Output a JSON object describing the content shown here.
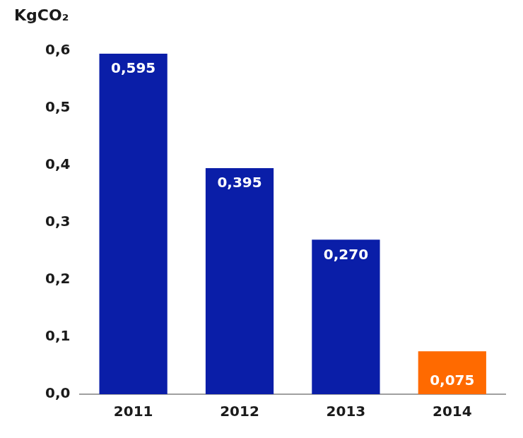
{
  "chart_data": {
    "type": "bar",
    "y_label": "KgCO₂",
    "categories": [
      "2011",
      "2012",
      "2013",
      "2014"
    ],
    "values": [
      0.595,
      0.395,
      0.27,
      0.075
    ],
    "value_labels": [
      "0,595",
      "0,395",
      "0,270",
      "0,075"
    ],
    "colors": [
      "#0a1ea8",
      "#0a1ea8",
      "#0a1ea8",
      "#ff6a00"
    ],
    "ylim": [
      0,
      0.6
    ],
    "yticks": [
      {
        "value": 0,
        "label": "0,0"
      },
      {
        "value": 0.1,
        "label": "0,1"
      },
      {
        "value": 0.2,
        "label": "0,2"
      },
      {
        "value": 0.3,
        "label": "0,3"
      },
      {
        "value": 0.4,
        "label": "0,4"
      },
      {
        "value": 0.5,
        "label": "0,5"
      },
      {
        "value": 0.6,
        "label": "0,6"
      }
    ],
    "grid": false,
    "data_labels": true
  }
}
